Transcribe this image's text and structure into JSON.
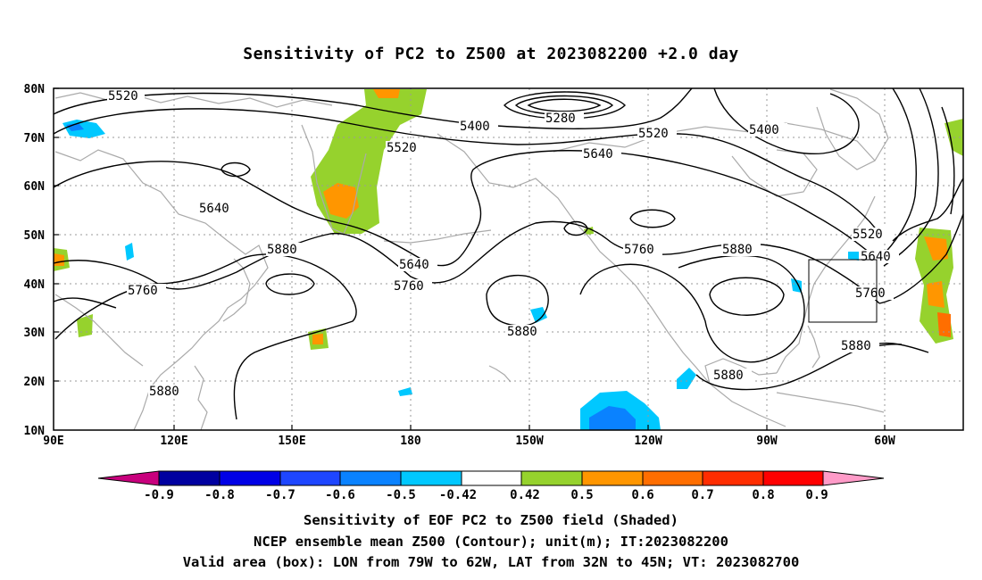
{
  "title": "Sensitivity of PC2 to Z500 at 2023082200 +2.0 day",
  "map": {
    "lat_labels": [
      "80N",
      "70N",
      "60N",
      "50N",
      "40N",
      "30N",
      "20N",
      "10N"
    ],
    "lon_labels": [
      "90E",
      "120E",
      "150E",
      "180",
      "150W",
      "120W",
      "90W",
      "60W"
    ],
    "contour_labels": [
      {
        "text": "5520"
      },
      {
        "text": "5400"
      },
      {
        "text": "5280"
      },
      {
        "text": "5520"
      },
      {
        "text": "5400"
      },
      {
        "text": "5520"
      },
      {
        "text": "5640"
      },
      {
        "text": "5640"
      },
      {
        "text": "5880"
      },
      {
        "text": "5760"
      },
      {
        "text": "5640"
      },
      {
        "text": "5760"
      },
      {
        "text": "5760"
      },
      {
        "text": "5880"
      },
      {
        "text": "5520"
      },
      {
        "text": "5640"
      },
      {
        "text": "5760"
      },
      {
        "text": "5880"
      },
      {
        "text": "5880"
      },
      {
        "text": "5880"
      },
      {
        "text": "5880"
      }
    ],
    "valid_box": {
      "lon_from": "79W",
      "lon_to": "62W",
      "lat_from": "32N",
      "lat_to": "45N"
    }
  },
  "colorbar": {
    "labels": [
      "-0.9",
      "-0.8",
      "-0.7",
      "-0.6",
      "-0.5",
      "-0.42",
      "0.42",
      "0.5",
      "0.6",
      "0.7",
      "0.8",
      "0.9"
    ],
    "colors": [
      "#c8007d",
      "#0000a0",
      "#0000e6",
      "#1e46ff",
      "#0a82ff",
      "#00c8ff",
      "#ffffff",
      "#96d22d",
      "#ff9600",
      "#ff6e00",
      "#ff2d00",
      "#ff0000",
      "#ff9bc8"
    ]
  },
  "captions": {
    "line1": "Sensitivity of EOF PC2 to Z500 field (Shaded)",
    "line2": "NCEP ensemble mean Z500 (Contour); unit(m); IT:2023082200",
    "line3": "Valid area (box): LON from 79W to 62W, LAT from 32N to 45N; VT: 2023082700"
  }
}
